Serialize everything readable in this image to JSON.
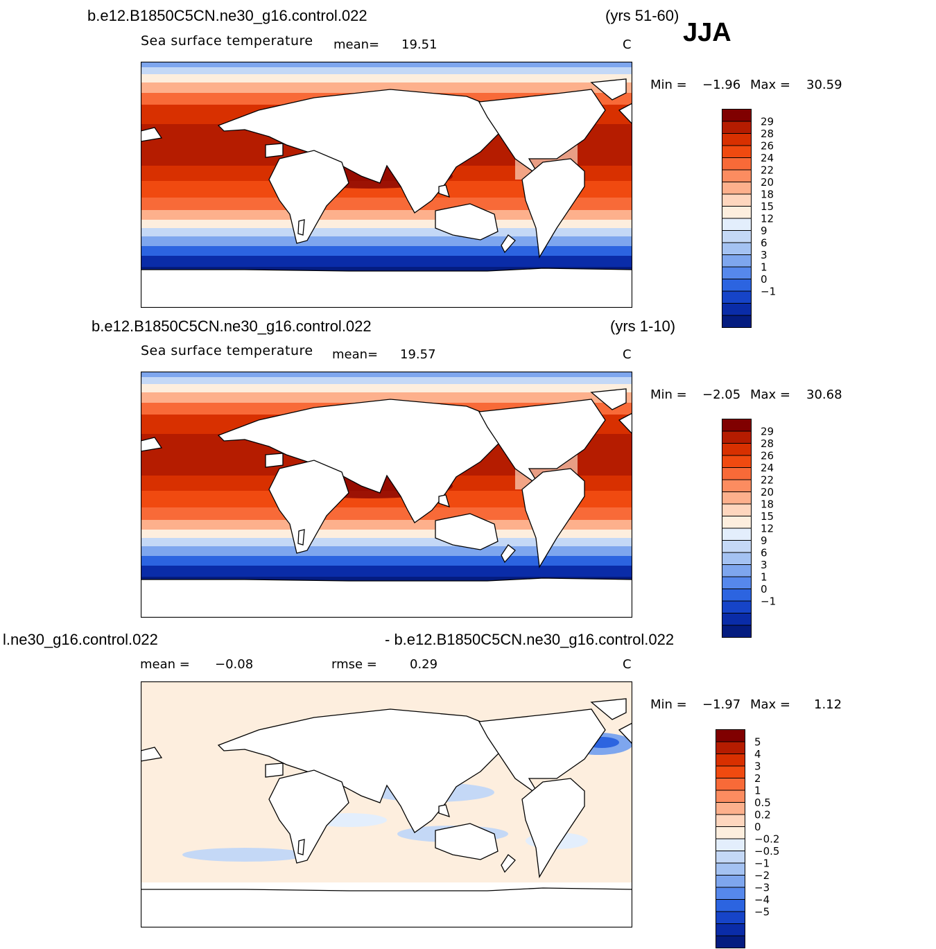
{
  "season": "JJA",
  "panels": [
    {
      "case_left": "b.e12.B1850C5CN.ne30_g16.control.022",
      "case_right": "(yrs 51-60)",
      "variable": "Sea surface temperature",
      "stat1_label": "mean=",
      "stat1_value": "19.51",
      "stat2_label": "",
      "stat2_value": "",
      "units": "C",
      "min_label": "Min  =",
      "min_value": "−1.96",
      "max_label": "Max  =",
      "max_value": "30.59",
      "colorbar": {
        "labels": [
          "29",
          "28",
          "26",
          "24",
          "22",
          "20",
          "18",
          "15",
          "12",
          "9",
          "6",
          "3",
          "1",
          "0",
          "−1"
        ],
        "colors": [
          "#800000",
          "#b51c00",
          "#d83000",
          "#f04a10",
          "#f86a38",
          "#fc8c60",
          "#fdb08c",
          "#fed6be",
          "#fdeede",
          "#e3eefc",
          "#c4d8f6",
          "#a4c2f2",
          "#7ea6ee",
          "#5688ec",
          "#2c64e0",
          "#1644c8",
          "#0a2ca8",
          "#041c80"
        ]
      }
    },
    {
      "case_left": "b.e12.B1850C5CN.ne30_g16.control.022",
      "case_right": "(yrs 1-10)",
      "variable": "Sea surface temperature",
      "stat1_label": "mean=",
      "stat1_value": "19.57",
      "stat2_label": "",
      "stat2_value": "",
      "units": "C",
      "min_label": "Min  =",
      "min_value": "−2.05",
      "max_label": "Max  =",
      "max_value": "30.68",
      "colorbar": {
        "labels": [
          "29",
          "28",
          "26",
          "24",
          "22",
          "20",
          "18",
          "15",
          "12",
          "9",
          "6",
          "3",
          "1",
          "0",
          "−1"
        ],
        "colors": [
          "#800000",
          "#b51c00",
          "#d83000",
          "#f04a10",
          "#f86a38",
          "#fc8c60",
          "#fdb08c",
          "#fed6be",
          "#fdeede",
          "#e3eefc",
          "#c4d8f6",
          "#a4c2f2",
          "#7ea6ee",
          "#5688ec",
          "#2c64e0",
          "#1644c8",
          "#0a2ca8",
          "#041c80"
        ]
      }
    },
    {
      "case_left": "l.ne30_g16.control.022",
      "case_right": "- b.e12.B1850C5CN.ne30_g16.control.022",
      "variable": "",
      "stat1_label": "mean  =",
      "stat1_value": "−0.08",
      "stat2_label": "rmse  =",
      "stat2_value": "0.29",
      "units": "C",
      "min_label": "Min  =",
      "min_value": "−1.97",
      "max_label": "Max  =",
      "max_value": "1.12",
      "colorbar": {
        "labels": [
          "5",
          "4",
          "3",
          "2",
          "1",
          "0.5",
          "0.2",
          "0",
          "−0.2",
          "−0.5",
          "−1",
          "−2",
          "−3",
          "−4",
          "−5"
        ],
        "colors": [
          "#800000",
          "#b51c00",
          "#d83000",
          "#f04a10",
          "#f86a38",
          "#fc8c60",
          "#fdb08c",
          "#fed6be",
          "#fdeede",
          "#e3eefc",
          "#c4d8f6",
          "#a4c2f2",
          "#7ea6ee",
          "#5688ec",
          "#2c64e0",
          "#1644c8",
          "#0a2ca8",
          "#041c80"
        ]
      }
    }
  ]
}
